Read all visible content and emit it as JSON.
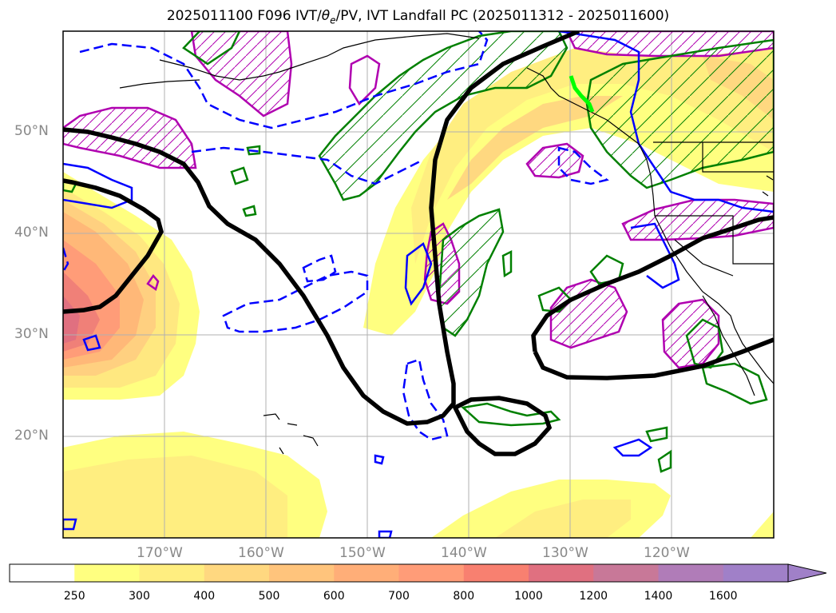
{
  "title": {
    "prefix": "2025011100 F096 IVT/",
    "theta": "θ",
    "theta_sub": "e",
    "suffix": "/PV, IVT Landfall PC (2025011312 - 2025011600)"
  },
  "map": {
    "lon_labels": [
      "170°W",
      "160°W",
      "150°W",
      "140°W",
      "130°W",
      "120°W"
    ],
    "lat_labels": [
      "50°N",
      "40°N",
      "30°N",
      "20°N"
    ],
    "colors": {
      "frame": "#000000",
      "grid": "#b0b0b0",
      "coast": "#000000",
      "pc_contour": "#000000",
      "pv_solid": "#0000ff",
      "pv_dashed": "#0000ff",
      "theta_e": "#008000",
      "hatch_region": "#b000b0",
      "landfall_mark": "#00ff00"
    }
  },
  "colorbar": {
    "ticks": [
      "250",
      "300",
      "400",
      "500",
      "600",
      "700",
      "800",
      "1000",
      "1200",
      "1400",
      "1600"
    ],
    "colors": [
      "#ffffff",
      "#ffff80",
      "#ffee80",
      "#ffd880",
      "#ffc47c",
      "#ffae78",
      "#ff9c78",
      "#f88070",
      "#e07080",
      "#c87898",
      "#b07cb8",
      "#a080c8"
    ],
    "extend": "max"
  }
}
